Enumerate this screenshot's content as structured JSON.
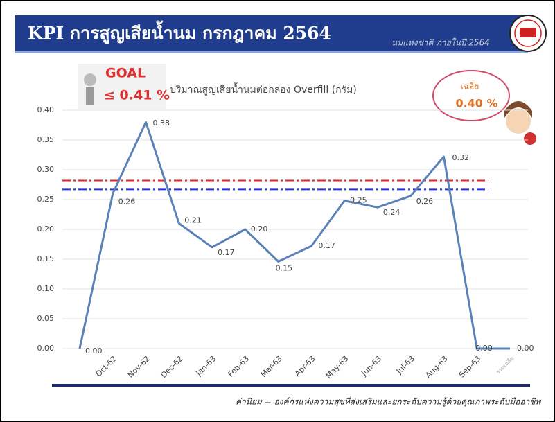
{
  "header": {
    "title": "KPI การสูญเสียน้ำนม กรกฎาคม 2564",
    "subtitle": "นมแห่งชาติ ภายในปี 2564"
  },
  "goal": {
    "label": "GOAL",
    "value": "≤ 0.41 %"
  },
  "average": {
    "label": "เฉลี่ย",
    "value": "0.40 %"
  },
  "footer": "ค่านิยม = องค์กรแห่งความสุขที่ส่งเสริมและยกระดับความรู้ด้วยคุณภาพระดับมืออาชีพ",
  "chart_data": {
    "type": "line",
    "title": "ปริมาณสูญเสียน้ำนมต่อกล่อง Overfill (กรัม)",
    "categories": [
      null,
      "Oct-62",
      "Nov-62",
      "Dec-62",
      "Jan-63",
      "Feb-63",
      "Mar-63",
      "Apr-63",
      "May-63",
      "Jun-63",
      "Jul-63",
      "Aug-63",
      "Sep-63",
      "รวมเฉลี่ย"
    ],
    "values": [
      0,
      0.26,
      0.38,
      0.21,
      0.17,
      0.2,
      0.146,
      0.172,
      0.248,
      0.237,
      0.256,
      0.322,
      0,
      0
    ],
    "value_labels": [
      "0.00",
      "0.26",
      "0.38",
      "0.21",
      "0.17",
      "0.20",
      "0.15",
      "0.17",
      "0.25",
      "0.24",
      "0.26",
      "0.32",
      "0.00",
      "0.00"
    ],
    "color": "#5b82b8",
    "ylim": [
      0,
      0.4
    ],
    "yticks": [
      {
        "value": 0,
        "label": "0.00"
      },
      0.05,
      {
        "value": 0.1,
        "label": "0.10"
      },
      0.15,
      {
        "value": 0.2,
        "label": "0.20"
      },
      0.25,
      {
        "value": 0.3,
        "label": "0.30"
      },
      0.35,
      {
        "value": 0.4,
        "label": "0.40"
      }
    ],
    "grid": true,
    "reference_lines": [
      {
        "value": 0.282,
        "color": "#e02424"
      },
      {
        "value": 0.267,
        "color": "#2233dd"
      }
    ]
  }
}
